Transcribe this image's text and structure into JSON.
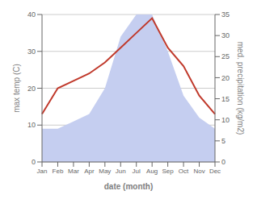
{
  "chart_data": {
    "type": "line",
    "xlabel": "date (month)",
    "ylabel": "max temp (C)",
    "y2label": "med. precipitation (kg/m2)",
    "categories": [
      "Jan",
      "Feb",
      "Mar",
      "Apr",
      "May",
      "Jun",
      "Jul",
      "Aug",
      "Sep",
      "Oct",
      "Nov",
      "Dec"
    ],
    "series": [
      {
        "type": "area",
        "color": "#c5cef0",
        "values": [
          9,
          9,
          11,
          13,
          20,
          34,
          40,
          40,
          30,
          18,
          12,
          9
        ]
      },
      {
        "type": "line",
        "color": "#c0392b",
        "values": [
          13,
          20,
          22,
          24,
          27,
          31,
          35,
          39,
          31,
          26,
          18,
          13
        ]
      }
    ],
    "ylim": [
      0,
      40
    ],
    "yticks": [
      0,
      10,
      20,
      30,
      40
    ],
    "y2lim": [
      0,
      35
    ],
    "y2ticks": [
      0,
      5,
      10,
      15,
      20,
      25,
      30,
      35
    ],
    "grid": true
  }
}
